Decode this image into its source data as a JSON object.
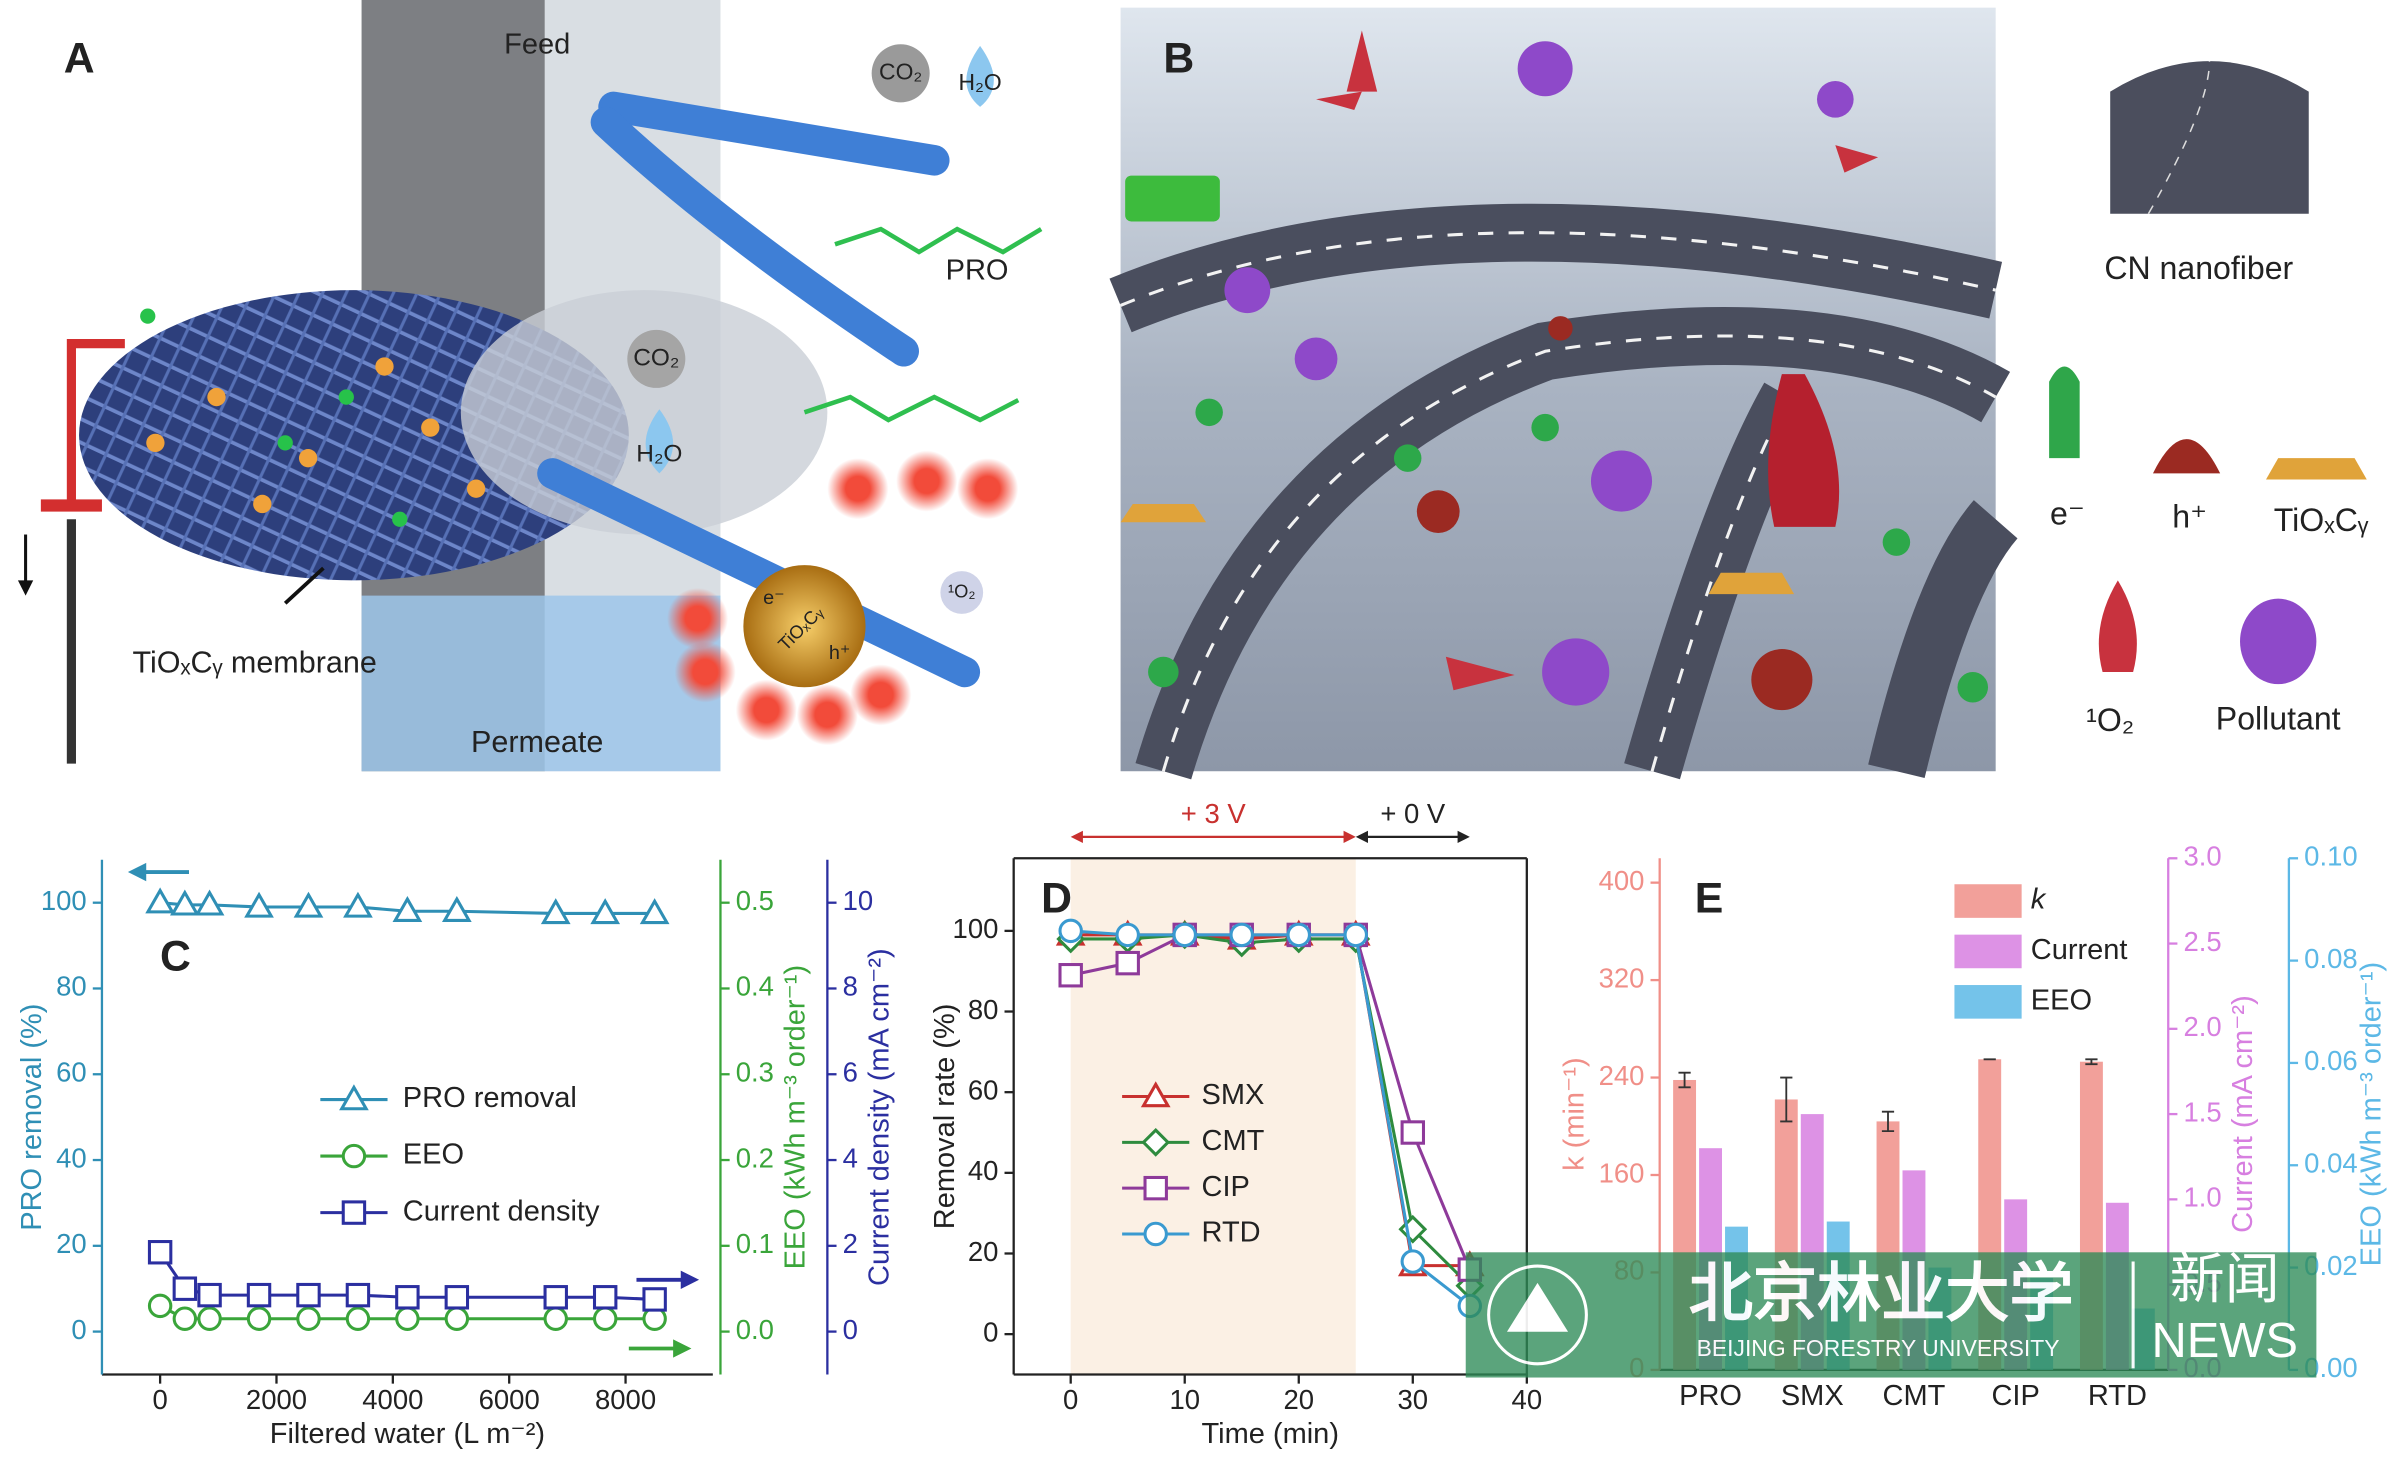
{
  "panel_a": {
    "label": "A",
    "feed": "Feed",
    "permeate": "Permeate",
    "membrane": "TiOₓCᵧ membrane",
    "pro": "PRO",
    "co2_top": "CO₂",
    "h2o_top": "H₂O",
    "co2": "CO₂",
    "h2o": "H₂O",
    "electron": "e⁻",
    "particle": "TiOₓCᵧ",
    "hole": "h⁺",
    "singlet_oxygen": "¹O₂"
  },
  "panel_b": {
    "label": "B",
    "nanofiber": "CN nanofiber",
    "electron": "e⁻",
    "hole": "h⁺",
    "particle": "TiOₓCᵧ",
    "singlet_oxygen": "¹O₂",
    "pollutant": "Pollutant"
  },
  "chart_data": [
    {
      "type": "line",
      "panel": "C",
      "xlabel": "Filtered water (L m⁻²)",
      "ylabel": "PRO removal (%)",
      "y2label": "EEO (kWh m⁻³ order⁻¹)",
      "y3label": "Current density (mA cm⁻²)",
      "x": [
        0,
        425,
        850,
        1700,
        2550,
        3400,
        4250,
        5100,
        6800,
        7650,
        8500
      ],
      "xlim": [
        -1000,
        9500
      ],
      "xticks": [
        0,
        2000,
        4000,
        6000,
        8000
      ],
      "ylim": [
        -10,
        110
      ],
      "yticks": [
        0,
        20,
        40,
        60,
        80,
        100
      ],
      "y2lim": [
        -0.05,
        0.55
      ],
      "y2ticks": [
        {
          "value": 0,
          "label": "0.0"
        },
        0.1,
        0.2,
        0.3,
        0.4,
        0.5
      ],
      "y3lim": [
        -1,
        11
      ],
      "y3ticks": [
        0,
        2,
        4,
        6,
        8,
        10
      ],
      "series": [
        {
          "name": "PRO removal",
          "color": "#2f8fb5",
          "marker": "triangle",
          "values": [
            100,
            99.5,
            99.5,
            99,
            99,
            99,
            98,
            98,
            97.5,
            97.5,
            97.5
          ]
        },
        {
          "name": "EEO",
          "color": "#3aa53a",
          "marker": "circle",
          "axis": "y2",
          "values": [
            0.03,
            0.015,
            0.015,
            0.015,
            0.015,
            0.015,
            0.015,
            0.015,
            0.015,
            0.015,
            0.015
          ]
        },
        {
          "name": "Current density",
          "color": "#2b2fa0",
          "marker": "square",
          "axis": "y3",
          "values": [
            1.85,
            1.0,
            0.85,
            0.85,
            0.85,
            0.85,
            0.8,
            0.8,
            0.8,
            0.8,
            0.75
          ]
        }
      ]
    },
    {
      "type": "line",
      "panel": "D",
      "xlabel": "Time (min)",
      "ylabel": "Removal rate (%)",
      "x": [
        0,
        5,
        10,
        15,
        20,
        25,
        30,
        35
      ],
      "xlim": [
        -5,
        40
      ],
      "xticks": [
        0,
        10,
        20,
        30,
        40
      ],
      "ylim": [
        -10,
        118
      ],
      "yticks": [
        0,
        20,
        40,
        60,
        80,
        100
      ],
      "annotations": [
        {
          "text": "+ 3 V",
          "span": [
            0,
            25
          ],
          "color": "#c8312f"
        },
        {
          "text": "+ 0 V",
          "span": [
            25,
            35
          ],
          "color": "#222222"
        }
      ],
      "series": [
        {
          "name": "SMX",
          "color": "#c8312f",
          "marker": "triangle",
          "values": [
            99,
            99,
            99,
            98,
            99,
            99,
            17,
            17
          ]
        },
        {
          "name": "CMT",
          "color": "#2e8b3e",
          "marker": "diamond",
          "values": [
            98,
            98,
            99,
            97,
            98,
            98,
            26,
            12
          ]
        },
        {
          "name": "CIP",
          "color": "#8e3a9a",
          "marker": "square",
          "values": [
            89,
            92,
            99,
            99,
            99,
            99,
            50,
            16
          ]
        },
        {
          "name": "RTD",
          "color": "#3a9ad0",
          "marker": "circle",
          "values": [
            100,
            99,
            99,
            99,
            99,
            99,
            18,
            7
          ]
        }
      ]
    },
    {
      "type": "bar",
      "panel": "E",
      "ylabel": "k (min⁻¹)",
      "y2label": "Current (mA cm⁻²)",
      "y3label": "EEO (kWh m⁻³ order⁻¹)",
      "categories": [
        "PRO",
        "SMX",
        "CMT",
        "CIP",
        "RTD"
      ],
      "ylim": [
        0,
        420
      ],
      "yticks": [
        0,
        80,
        160,
        240,
        320,
        400
      ],
      "y2lim": [
        0,
        3
      ],
      "y2ticks": [
        {
          "value": 0,
          "label": "0.0"
        },
        0.5,
        {
          "value": 1,
          "label": "1.0"
        },
        1.5,
        {
          "value": 2,
          "label": "2.0"
        },
        2.5,
        {
          "value": 3,
          "label": "3.0"
        }
      ],
      "y3lim": [
        0,
        0.1
      ],
      "y3ticks": [
        {
          "value": 0,
          "label": "0.00"
        },
        {
          "value": 0.02,
          "label": "0.02"
        },
        {
          "value": 0.04,
          "label": "0.04"
        },
        {
          "value": 0.06,
          "label": "0.06"
        },
        {
          "value": 0.08,
          "label": "0.08"
        },
        {
          "value": 0.1,
          "label": "0.10"
        }
      ],
      "series": [
        {
          "name": "k",
          "color": "#f08f88",
          "values": [
            238,
            222,
            204,
            255,
            253
          ],
          "errors": [
            6,
            18,
            8,
            0,
            2
          ]
        },
        {
          "name": "Current",
          "color": "#d77fe0",
          "axis": "y2",
          "values": [
            1.3,
            1.5,
            1.17,
            1.0,
            0.98
          ]
        },
        {
          "name": "EEO",
          "color": "#5cb8e6",
          "axis": "y3",
          "values": [
            0.028,
            0.029,
            0.02,
            0.018,
            0.012
          ]
        }
      ]
    }
  ],
  "watermark": {
    "name": "北京林业大学",
    "english": "BEIJING FORESTRY UNIVERSITY",
    "news_cn": "新闻",
    "news_en": "NEWS"
  }
}
